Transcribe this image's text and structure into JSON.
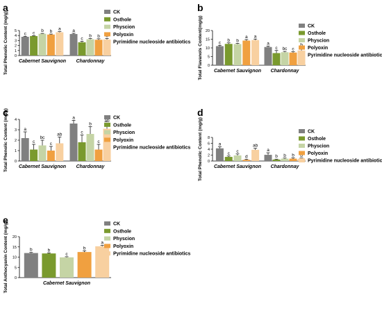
{
  "figure": {
    "series_colors": [
      "#808080",
      "#7a9a2e",
      "#c5d4a5",
      "#f0a040",
      "#f8d0a0"
    ]
  },
  "chart_data": [
    {
      "panel": "a",
      "type": "bar",
      "ylabel": "Total Phenolic Content (mg/g)",
      "ylim": [
        0,
        5
      ],
      "ticks": [
        0,
        1,
        2,
        3,
        4,
        5
      ],
      "categories": [
        "Cabernet Sauvignon",
        "Chardonnay"
      ],
      "series": [
        {
          "name": "CK",
          "values": [
            3.75,
            4.3
          ],
          "errors": [
            0.1,
            0.15
          ],
          "letters": [
            "c",
            "a"
          ]
        },
        {
          "name": "Osthole",
          "values": [
            3.9,
            2.65
          ],
          "errors": [
            0.08,
            0.2
          ],
          "letters": [
            "c",
            "c"
          ]
        },
        {
          "name": "Physcion",
          "values": [
            4.35,
            3.25
          ],
          "errors": [
            0.08,
            0.15
          ],
          "letters": [
            "b",
            "b"
          ]
        },
        {
          "name": "Polyoxin",
          "values": [
            4.2,
            3.15
          ],
          "errors": [
            0.1,
            0.2
          ],
          "letters": [
            "b",
            "b"
          ]
        },
        {
          "name": "Pyrimidine nucleoside antibiotics",
          "values": [
            4.65,
            3.2
          ],
          "errors": [
            0.12,
            0.2
          ],
          "letters": [
            "a",
            "b"
          ]
        }
      ]
    },
    {
      "panel": "b",
      "type": "bar",
      "ylabel": "Total Flavanols Content(mg/g)",
      "ylim": [
        0,
        20
      ],
      "ticks": [
        0,
        5,
        10,
        15,
        20
      ],
      "categories": [
        "Cabernet Sauvignon",
        "Chardonnay"
      ],
      "series": [
        {
          "name": "CK",
          "values": [
            11.0,
            10.5
          ],
          "errors": [
            0.5,
            0.5
          ],
          "letters": [
            "c",
            "a"
          ]
        },
        {
          "name": "Osthole",
          "values": [
            12.3,
            7.0
          ],
          "errors": [
            0.6,
            1.5
          ],
          "letters": [
            "b",
            "c"
          ]
        },
        {
          "name": "Physcion",
          "values": [
            12.2,
            7.5
          ],
          "errors": [
            0.4,
            0.5
          ],
          "letters": [
            "b",
            "bc"
          ]
        },
        {
          "name": "Polyoxin",
          "values": [
            14.2,
            7.3
          ],
          "errors": [
            0.6,
            0.5
          ],
          "letters": [
            "a",
            "c"
          ]
        },
        {
          "name": "Pyrimidine nucleoside antibiotics",
          "values": [
            14.5,
            8.5
          ],
          "errors": [
            0.6,
            1.8
          ],
          "letters": [
            "a",
            "b"
          ]
        }
      ]
    },
    {
      "panel": "c",
      "type": "bar",
      "ylabel": "Total Phenolic Content (mg/g)",
      "ylim": [
        0,
        4
      ],
      "ticks": [
        0,
        1,
        2,
        3,
        4
      ],
      "categories": [
        "Cabernet Sauvignon",
        "Chardonnay"
      ],
      "series": [
        {
          "name": "CK",
          "values": [
            2.2,
            3.6
          ],
          "errors": [
            0.6,
            0.3
          ],
          "letters": [
            "a",
            "a"
          ]
        },
        {
          "name": "Osthole",
          "values": [
            1.1,
            1.8
          ],
          "errors": [
            0.5,
            0.7
          ],
          "letters": [
            "c",
            "c"
          ]
        },
        {
          "name": "Physcion",
          "values": [
            1.5,
            2.6
          ],
          "errors": [
            0.5,
            0.7
          ],
          "letters": [
            "bc",
            "b"
          ]
        },
        {
          "name": "Polyoxin",
          "values": [
            1.0,
            1.1
          ],
          "errors": [
            0.4,
            0.5
          ],
          "letters": [
            "c",
            "c"
          ]
        },
        {
          "name": "Pyrimidine nucleoside antibiotics",
          "values": [
            1.7,
            3.1
          ],
          "errors": [
            0.6,
            0.5
          ],
          "letters": [
            "ab",
            "ab"
          ]
        }
      ]
    },
    {
      "panel": "d",
      "type": "bar",
      "ylabel": "Total Phenolic Content (mg/g)",
      "ylim": [
        0,
        8
      ],
      "ticks": [
        0,
        2,
        4,
        6,
        8
      ],
      "categories": [
        "Cabernet Sauvignon",
        "Chardonnay"
      ],
      "series": [
        {
          "name": "CK",
          "values": [
            4.3,
            2.1
          ],
          "errors": [
            0.5,
            0.7
          ],
          "letters": [
            "a",
            "a"
          ]
        },
        {
          "name": "Osthole",
          "values": [
            1.4,
            0.5
          ],
          "errors": [
            0.3,
            0.15
          ],
          "letters": [
            "c",
            "b"
          ]
        },
        {
          "name": "Physcion",
          "values": [
            1.9,
            0.8
          ],
          "errors": [
            0.5,
            0.2
          ],
          "letters": [
            "c",
            "b"
          ]
        },
        {
          "name": "Polyoxin",
          "values": [
            0.4,
            0.8
          ],
          "errors": [
            0.2,
            0.3
          ],
          "letters": [
            "d",
            "b"
          ]
        },
        {
          "name": "Pyrimidine nucleoside antibiotics",
          "values": [
            3.8,
            0.7
          ],
          "errors": [
            0.5,
            0.3
          ],
          "letters": [
            "ab",
            "b"
          ]
        }
      ]
    },
    {
      "panel": "e",
      "type": "bar",
      "ylabel": "Total Anthocyanin Content (mg/g)",
      "ylim": [
        0,
        20
      ],
      "ticks": [
        0,
        5,
        10,
        15,
        20
      ],
      "categories": [
        "Cabernet Sauvignon"
      ],
      "series": [
        {
          "name": "CK",
          "values": [
            12.0
          ],
          "errors": [
            0.3
          ],
          "letters": [
            "b"
          ]
        },
        {
          "name": "Osthole",
          "values": [
            11.8
          ],
          "errors": [
            0.3
          ],
          "letters": [
            "b"
          ]
        },
        {
          "name": "Physcion",
          "values": [
            9.9
          ],
          "errors": [
            0.3
          ],
          "letters": [
            "c"
          ]
        },
        {
          "name": "Polyoxin",
          "values": [
            12.5
          ],
          "errors": [
            0.6
          ],
          "letters": [
            "b"
          ]
        },
        {
          "name": "Pyrimidine nucleoside antibiotics",
          "values": [
            15.3
          ],
          "errors": [
            0.4
          ],
          "letters": [
            "a"
          ]
        }
      ]
    }
  ]
}
